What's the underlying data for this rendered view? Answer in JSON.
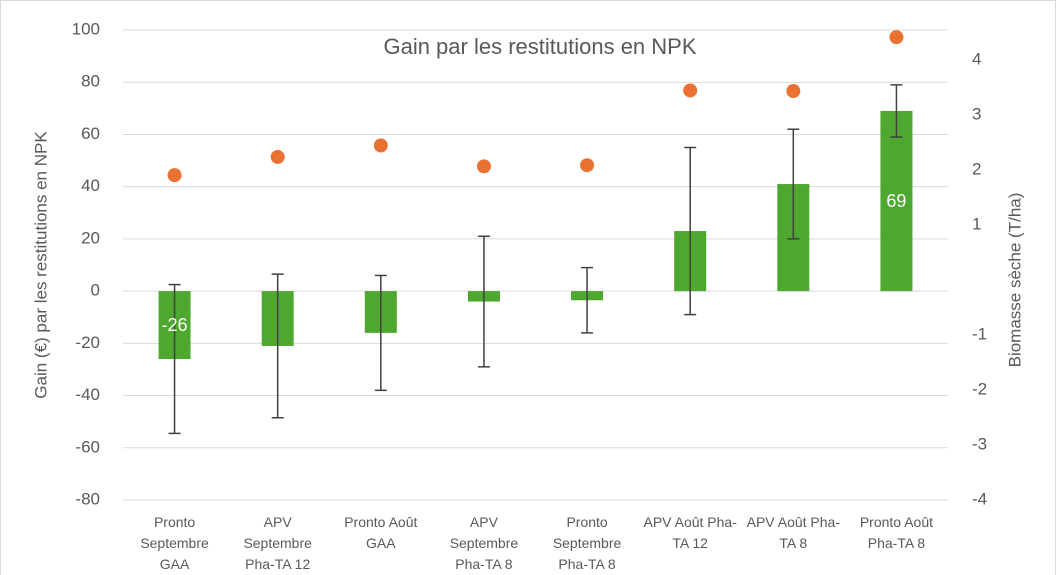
{
  "chart_data": {
    "type": "bar",
    "title": "Gain par les restitutions en NPK",
    "y_label": "Gain (€) par les restitutions en NPK",
    "y2_label": "Biomasse sèche (T/ha)",
    "categories": [
      "Pronto Septembre GAA",
      "APV Septembre Pha-TA 12",
      "Pronto Août GAA",
      "APV Septembre Pha-TA 8",
      "Pronto Septembre Pha-TA 8",
      "APV Août Pha-TA 12",
      "APV Août Pha-TA 8",
      "Pronto Août Pha-TA 8"
    ],
    "bars": {
      "color": "#4ea72e",
      "values": [
        -26,
        -21,
        -16,
        -4,
        -3.5,
        23,
        41,
        69
      ],
      "errors": [
        28.5,
        27.5,
        22,
        25,
        12.5,
        32,
        21,
        10
      ],
      "value_labels": [
        "-26",
        null,
        null,
        null,
        null,
        null,
        null,
        "69"
      ]
    },
    "points": {
      "color": "#e97132",
      "axis": "y2",
      "values": [
        1.91,
        2.24,
        2.45,
        2.07,
        2.09,
        3.45,
        3.44,
        4.42
      ]
    },
    "ylim": [
      -80,
      100
    ],
    "yticks": [
      -80,
      -60,
      -40,
      -20,
      0,
      20,
      40,
      60,
      80,
      100
    ],
    "y2lim": [
      -4,
      4.55
    ],
    "y2ticks": [
      -4,
      -3,
      -2,
      -1,
      1,
      2,
      3,
      4
    ],
    "grid": true
  }
}
